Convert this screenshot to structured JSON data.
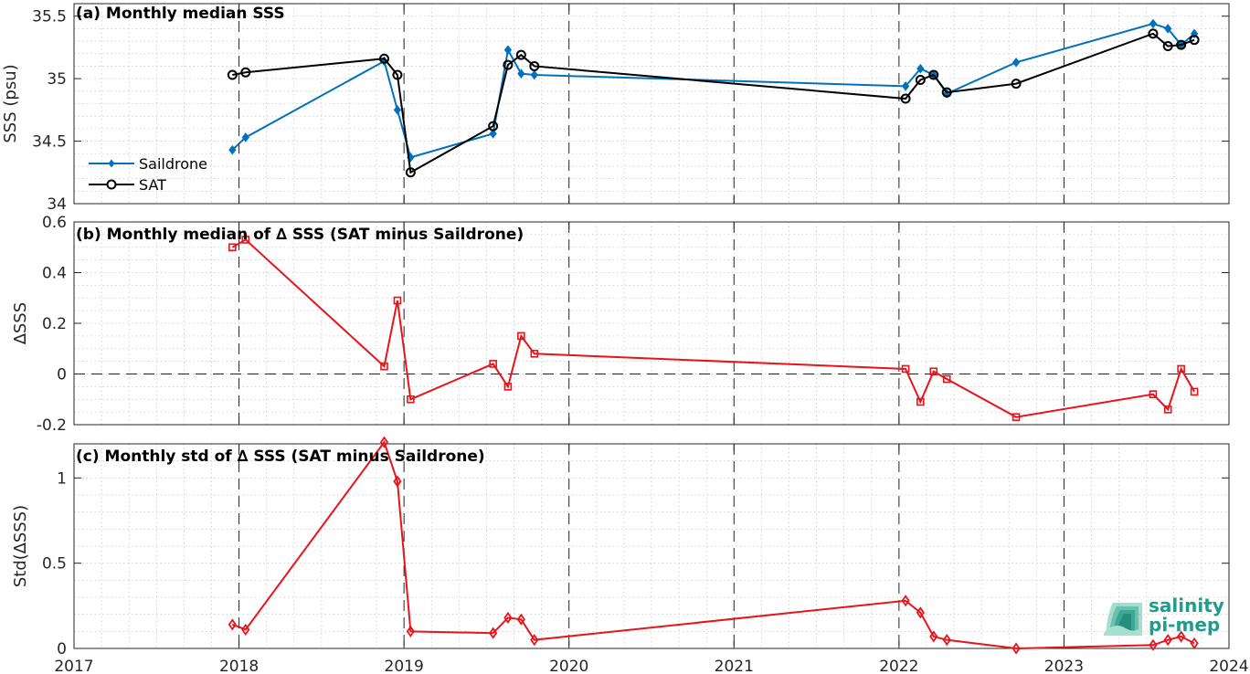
{
  "colors": {
    "saildrone": "#0072BD",
    "sat": "#000000",
    "delta": "#E8141A",
    "logo": "#1E9C8C"
  },
  "logo": {
    "line1": "salinity",
    "line2": "pi-mep"
  },
  "x_axis": {
    "ticks": [
      2017,
      2018,
      2019,
      2020,
      2021,
      2022,
      2023,
      2024
    ],
    "range": [
      2017,
      2024
    ]
  },
  "chart_data": [
    {
      "type": "line",
      "title": "(a) Monthly median SSS",
      "ylabel": "SSS (psu)",
      "xlim": [
        2017,
        2024
      ],
      "ylim": [
        34,
        35.6
      ],
      "yticks": [
        34,
        34.5,
        35,
        35.5
      ],
      "ytick_labels": [
        "34",
        "34.5",
        "35",
        "35.5"
      ],
      "grid": "minor-dotted, yearly dashed verticals",
      "legend": "left",
      "series": [
        {
          "name": "Saildrone",
          "marker": "filled-diamond",
          "x": [
            2017.96,
            2018.04,
            2018.88,
            2018.96,
            2019.04,
            2019.54,
            2019.63,
            2019.71,
            2019.79,
            2022.04,
            2022.13,
            2022.21,
            2022.29,
            2022.71,
            2023.54,
            2023.63,
            2023.71,
            2023.79
          ],
          "values": [
            34.43,
            34.53,
            35.14,
            34.75,
            34.37,
            34.56,
            35.23,
            35.04,
            35.03,
            34.94,
            35.08,
            35.03,
            34.88,
            35.13,
            35.44,
            35.4,
            35.27,
            35.36
          ]
        },
        {
          "name": "SAT",
          "marker": "open-circle",
          "x": [
            2017.96,
            2018.04,
            2018.88,
            2018.96,
            2019.04,
            2019.54,
            2019.63,
            2019.71,
            2019.79,
            2022.04,
            2022.13,
            2022.21,
            2022.29,
            2022.71,
            2023.54,
            2023.63,
            2023.71,
            2023.79
          ],
          "values": [
            35.03,
            35.05,
            35.16,
            35.03,
            34.25,
            34.62,
            35.11,
            35.19,
            35.1,
            34.84,
            34.99,
            35.03,
            34.89,
            34.96,
            35.36,
            35.26,
            35.27,
            35.31
          ]
        }
      ]
    },
    {
      "type": "line",
      "title": "(b) Monthly median of ∆ SSS (SAT minus Saildrone)",
      "ylabel": "∆SSS",
      "xlim": [
        2017,
        2024
      ],
      "ylim": [
        -0.2,
        0.6
      ],
      "yticks": [
        -0.2,
        0,
        0.2,
        0.4,
        0.6
      ],
      "ytick_labels": [
        "-0.2",
        "0",
        "0.2",
        "0.4",
        "0.6"
      ],
      "zero_line": true,
      "series": [
        {
          "marker": "open-square",
          "x": [
            2017.96,
            2018.04,
            2018.88,
            2018.96,
            2019.04,
            2019.54,
            2019.63,
            2019.71,
            2019.79,
            2022.04,
            2022.13,
            2022.21,
            2022.29,
            2022.71,
            2023.54,
            2023.63,
            2023.71,
            2023.79
          ],
          "values": [
            0.5,
            0.53,
            0.03,
            0.29,
            -0.1,
            0.04,
            -0.05,
            0.15,
            0.08,
            0.02,
            -0.11,
            0.01,
            -0.02,
            -0.17,
            -0.08,
            -0.14,
            0.02,
            -0.07
          ]
        }
      ]
    },
    {
      "type": "line",
      "title": "(c) Monthly std of ∆ SSS (SAT minus Saildrone)",
      "ylabel": "Std(∆SSS)",
      "xlim": [
        2017,
        2024
      ],
      "ylim": [
        0,
        1.2
      ],
      "yticks": [
        0,
        0.5,
        1
      ],
      "ytick_labels": [
        "0",
        "0.5",
        "1"
      ],
      "series": [
        {
          "marker": "open-diamond",
          "x": [
            2017.96,
            2018.04,
            2018.88,
            2018.96,
            2019.04,
            2019.54,
            2019.63,
            2019.71,
            2019.79,
            2022.04,
            2022.13,
            2022.21,
            2022.29,
            2022.71,
            2023.54,
            2023.63,
            2023.71,
            2023.79
          ],
          "values": [
            0.14,
            0.11,
            1.21,
            0.98,
            0.1,
            0.09,
            0.18,
            0.17,
            0.05,
            0.28,
            0.21,
            0.07,
            0.05,
            0.0,
            0.02,
            0.05,
            0.07,
            0.03
          ]
        }
      ]
    }
  ]
}
